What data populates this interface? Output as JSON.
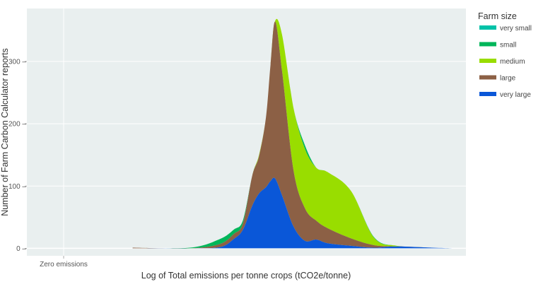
{
  "chart_data": {
    "type": "area",
    "stacked": true,
    "title": "",
    "xlabel": "Log of Total emissions per tonne crops (tCO2e/tonne)",
    "ylabel": "Number of Farm Carbon Calculator reports",
    "x_tick_labels": [
      {
        "x": 0,
        "label": "Zero emissions"
      }
    ],
    "y_ticks": [
      0,
      100,
      200,
      300
    ],
    "ylim": [
      -12,
      385
    ],
    "xlim": [
      -0.16,
      1.75
    ],
    "grid": true,
    "background": "#e9efef",
    "legend": {
      "title": "Farm size",
      "placement": "right"
    },
    "series": [
      {
        "name": "very large",
        "color": "#0a57d8",
        "x": [
          0.3,
          0.55,
          0.68,
          0.74,
          0.78,
          0.82,
          0.85,
          0.88,
          0.9,
          0.92,
          0.95,
          1.0,
          1.05,
          1.1,
          1.15,
          1.25,
          1.35,
          1.45,
          1.6,
          1.7
        ],
        "values": [
          0,
          0,
          2,
          15,
          30,
          68,
          88,
          98,
          108,
          112,
          85,
          35,
          12,
          14,
          8,
          4,
          1,
          3,
          1,
          0
        ]
      },
      {
        "name": "large",
        "color": "#8c6045",
        "x": [
          0.3,
          0.55,
          0.68,
          0.74,
          0.78,
          0.82,
          0.85,
          0.88,
          0.9,
          0.92,
          0.95,
          1.0,
          1.05,
          1.1,
          1.15,
          1.25,
          1.35,
          1.45,
          1.6,
          1.7
        ],
        "values": [
          1,
          0,
          5,
          8,
          10,
          48,
          60,
          112,
          187,
          252,
          200,
          90,
          52,
          30,
          24,
          12,
          4,
          0,
          0,
          0
        ]
      },
      {
        "name": "medium",
        "color": "#99dd00",
        "x": [
          0.3,
          0.55,
          0.68,
          0.74,
          0.78,
          0.82,
          0.85,
          0.88,
          0.9,
          0.92,
          0.95,
          1.0,
          1.05,
          1.1,
          1.15,
          1.25,
          1.35,
          1.45,
          1.6,
          1.7
        ],
        "values": [
          0,
          0,
          0,
          0,
          0,
          0,
          2,
          0,
          0,
          1,
          58,
          100,
          95,
          85,
          90,
          76,
          12,
          1,
          0,
          0
        ]
      },
      {
        "name": "small",
        "color": "#00b65a",
        "x": [
          0.3,
          0.55,
          0.68,
          0.74,
          0.78,
          0.82,
          0.85,
          0.88,
          0.9,
          0.92,
          0.95,
          1.0,
          1.05,
          1.1,
          1.15,
          1.25,
          1.35,
          1.45,
          1.6,
          1.7
        ],
        "values": [
          0,
          1,
          8,
          7,
          5,
          0,
          0,
          0,
          0,
          0,
          0,
          0,
          6,
          0,
          0,
          0,
          1,
          0,
          0,
          0
        ]
      },
      {
        "name": "very small",
        "color": "#00c2a8",
        "x": [
          0.3,
          0.55,
          0.68,
          0.74,
          0.78,
          0.82,
          0.85,
          0.88,
          0.9,
          0.92,
          0.95,
          1.0,
          1.05,
          1.1,
          1.15,
          1.25,
          1.35,
          1.45,
          1.6,
          1.7
        ],
        "values": [
          0,
          0,
          0,
          0,
          0,
          0,
          0,
          0,
          0,
          0,
          0,
          0,
          0,
          0,
          0,
          0,
          0,
          0,
          0,
          0
        ]
      }
    ],
    "legend_order": [
      "very small",
      "small",
      "medium",
      "large",
      "very large"
    ]
  }
}
